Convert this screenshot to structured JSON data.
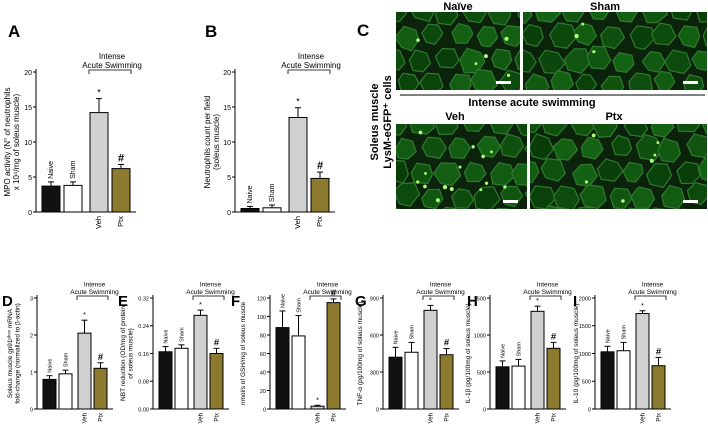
{
  "colors": {
    "black": "#111111",
    "white": "#ffffff",
    "gray": "#d0d0d0",
    "olive": "#8c7a2f",
    "tissue_dark": "#0b230b",
    "tissue_fibre": "#184a18",
    "tissue_edge": "#2f7a2f",
    "cell": "#a8ff7a"
  },
  "bracket_text": [
    "Intense",
    "Acute Swimming"
  ],
  "star": "*",
  "hash": "#",
  "panels": [
    {
      "id": "A",
      "ylabel": [
        "MPO activity (N° of neutrophils",
        "x 10⁴/mg of soleus muscle)"
      ],
      "ticks": [
        "0",
        "5",
        "10",
        "15",
        "20"
      ],
      "ylim": [
        0,
        20
      ],
      "chart_data": {
        "type": "bar",
        "categories": [
          "Naive",
          "Sham",
          "Veh",
          "Ptx"
        ],
        "values": [
          3.7,
          3.8,
          14.2,
          6.2
        ],
        "errors": [
          0.6,
          0.5,
          2.0,
          0.6
        ],
        "star": 2,
        "hash": 3
      }
    },
    {
      "id": "B",
      "ylabel": [
        "Neutrophils count per field",
        "(soleus muscle)"
      ],
      "ticks": [
        "0",
        "5",
        "10",
        "15",
        "20"
      ],
      "ylim": [
        0,
        20
      ],
      "chart_data": {
        "type": "bar",
        "categories": [
          "Naive",
          "Sham",
          "Veh",
          "Ptx"
        ],
        "values": [
          0.5,
          0.6,
          13.5,
          4.8
        ],
        "errors": [
          0.3,
          0.4,
          1.4,
          0.9
        ],
        "star": 2,
        "hash": 3
      }
    },
    {
      "id": "D",
      "ylabel": [
        "Soleus muscle gp91ᵖʰᵒˣ mRNA",
        "fold-change (normalized to β-actin)"
      ],
      "ticks": [
        "0",
        "1",
        "2",
        "3"
      ],
      "ylim": [
        0,
        3
      ],
      "chart_data": {
        "type": "bar",
        "categories": [
          "Naive",
          "Sham",
          "Veh",
          "Ptx"
        ],
        "values": [
          0.8,
          0.95,
          2.05,
          1.1
        ],
        "errors": [
          0.1,
          0.1,
          0.35,
          0.15
        ],
        "star": 2,
        "hash": 3
      }
    },
    {
      "id": "E",
      "ylabel": [
        "NBT reduction (OD/mg of protein",
        "of soleus muscle)"
      ],
      "ticks": [
        "0.00",
        "0.08",
        "0.16",
        "0.24",
        "0.32"
      ],
      "ylim": [
        0,
        0.32
      ],
      "chart_data": {
        "type": "bar",
        "categories": [
          "Naive",
          "Sham",
          "Veh",
          "Ptx"
        ],
        "values": [
          0.165,
          0.175,
          0.27,
          0.16
        ],
        "errors": [
          0.015,
          0.01,
          0.015,
          0.015
        ],
        "star": 2,
        "hash": 3
      }
    },
    {
      "id": "F",
      "ylabel": [
        "nmol/s of GSH/mg of soleus muscle"
      ],
      "ticks": [
        "0",
        "20",
        "40",
        "60",
        "80",
        "100",
        "120"
      ],
      "ylim": [
        0,
        120
      ],
      "chart_data": {
        "type": "bar",
        "categories": [
          "Naive",
          "Sham",
          "Veh",
          "Ptx"
        ],
        "values": [
          88,
          79,
          3,
          115
        ],
        "errors": [
          18,
          22,
          1,
          4
        ],
        "star": 2,
        "hash": 3
      }
    },
    {
      "id": "G",
      "ylabel": [
        "TNF-α (pg/100mg of soleus muscle)"
      ],
      "ticks": [
        "0",
        "300",
        "600",
        "900"
      ],
      "ylim": [
        0,
        900
      ],
      "chart_data": {
        "type": "bar",
        "categories": [
          "Naive",
          "Sham",
          "Veh",
          "Ptx"
        ],
        "values": [
          420,
          460,
          800,
          440
        ],
        "errors": [
          80,
          80,
          40,
          50
        ],
        "star": 2,
        "hash": 3
      }
    },
    {
      "id": "H",
      "ylabel": [
        "IL-1β (pg/100mg of soleus muscle)"
      ],
      "ticks": [
        "0",
        "500",
        "1000",
        "1500"
      ],
      "ylim": [
        0,
        1500
      ],
      "chart_data": {
        "type": "bar",
        "categories": [
          "Naive",
          "Sham",
          "Veh",
          "Ptx"
        ],
        "values": [
          570,
          580,
          1320,
          820
        ],
        "errors": [
          80,
          90,
          70,
          80
        ],
        "star": 2,
        "hash": 3
      }
    },
    {
      "id": "I",
      "ylabel": [
        "IL-10 (pg/100mg of soleus muscle)"
      ],
      "ticks": [
        "0",
        "500",
        "1000",
        "1500",
        "2000"
      ],
      "ylim": [
        0,
        2000
      ],
      "chart_data": {
        "type": "bar",
        "categories": [
          "Naive",
          "Sham",
          "Veh",
          "Ptx"
        ],
        "values": [
          1030,
          1050,
          1720,
          780
        ],
        "errors": [
          100,
          150,
          50,
          150
        ],
        "star": 2,
        "hash": 3
      }
    }
  ],
  "panel_c": {
    "letter": "C",
    "side_label": [
      "Soleus muscle",
      "LysM-eGFP⁺ cells"
    ],
    "top_labels": [
      "Naïve",
      "Sham"
    ],
    "group_title": "Intense acute swimming",
    "bottom_labels": [
      "Veh",
      "Ptx"
    ]
  }
}
